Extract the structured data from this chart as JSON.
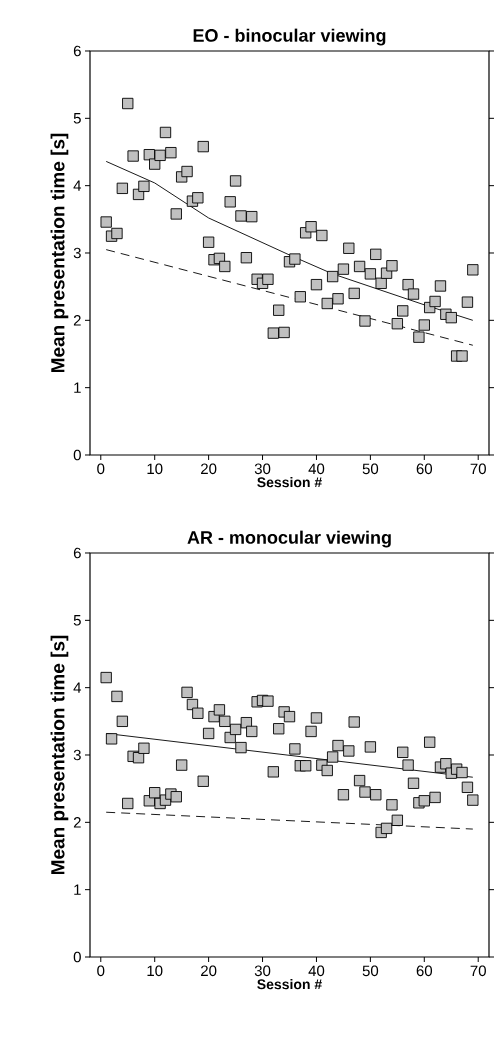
{
  "chart_data": [
    {
      "type": "scatter",
      "title": "EO - binocular viewing",
      "xlabel": "Session #",
      "ylabel": "Mean presentation time [s]",
      "xlim": [
        -2,
        72
      ],
      "ylim": [
        0,
        6
      ],
      "xticks": [
        0,
        10,
        20,
        30,
        40,
        50,
        60,
        70
      ],
      "yticks": [
        0,
        1,
        2,
        3,
        4,
        5,
        6
      ],
      "series": [
        {
          "color": "#c0c0c0",
          "marker": "square",
          "x": [
            1,
            2,
            3,
            4,
            5,
            6,
            7,
            8,
            9,
            10,
            11,
            12,
            13,
            14,
            15,
            16,
            17,
            18,
            19,
            20,
            21,
            22,
            23,
            24,
            25,
            26,
            27,
            28,
            29,
            30,
            31,
            32,
            33,
            34,
            35,
            36,
            37,
            38,
            39,
            40,
            41,
            42,
            43,
            44,
            45,
            46,
            47,
            48,
            49,
            50,
            51,
            52,
            53,
            54,
            55,
            56,
            57,
            58,
            59,
            60,
            61,
            62,
            63,
            64,
            65,
            66,
            67,
            68,
            69
          ],
          "values": [
            3.46,
            3.25,
            3.29,
            3.96,
            5.22,
            4.44,
            3.87,
            3.99,
            4.46,
            4.32,
            4.45,
            4.79,
            4.49,
            3.58,
            4.13,
            4.21,
            3.77,
            3.82,
            4.58,
            3.16,
            2.9,
            2.92,
            2.8,
            3.76,
            4.07,
            3.55,
            2.93,
            3.54,
            2.61,
            2.55,
            2.61,
            1.81,
            2.15,
            1.82,
            2.87,
            2.91,
            2.35,
            3.3,
            3.39,
            2.53,
            3.26,
            2.25,
            2.65,
            2.32,
            2.76,
            3.07,
            2.4,
            2.8,
            1.99,
            2.69,
            2.98,
            2.55,
            2.7,
            2.81,
            1.95,
            2.14,
            2.53,
            2.39,
            1.75,
            1.93,
            2.19,
            2.28,
            2.51,
            2.09,
            2.04,
            1.47,
            1.47,
            2.27,
            2.75
          ]
        },
        {
          "type": "line",
          "color": "#000000",
          "line_style": "solid",
          "x": [
            1,
            10,
            20,
            35,
            43,
            60,
            69
          ],
          "values": [
            4.36,
            4.04,
            3.52,
            2.97,
            2.69,
            2.23,
            2.0
          ]
        },
        {
          "type": "line",
          "color": "#000000",
          "line_style": "dashed",
          "x": [
            1,
            69
          ],
          "values": [
            3.05,
            1.63
          ]
        }
      ]
    },
    {
      "type": "scatter",
      "title": "AR - monocular viewing",
      "xlabel": "Session #",
      "ylabel": "Mean presentation time [s]",
      "xlim": [
        -2,
        72
      ],
      "ylim": [
        0,
        6
      ],
      "xticks": [
        0,
        10,
        20,
        30,
        40,
        50,
        60,
        70
      ],
      "yticks": [
        0,
        1,
        2,
        3,
        4,
        5,
        6
      ],
      "series": [
        {
          "color": "#c0c0c0",
          "marker": "square",
          "x": [
            1,
            2,
            3,
            4,
            5,
            6,
            7,
            8,
            9,
            10,
            11,
            12,
            13,
            14,
            15,
            16,
            17,
            18,
            19,
            20,
            21,
            22,
            23,
            24,
            25,
            26,
            27,
            28,
            29,
            30,
            31,
            32,
            33,
            34,
            35,
            36,
            37,
            38,
            39,
            40,
            41,
            42,
            43,
            44,
            45,
            46,
            47,
            48,
            49,
            50,
            51,
            52,
            53,
            54,
            55,
            56,
            57,
            58,
            59,
            60,
            61,
            62,
            63,
            64,
            65,
            66,
            67,
            68,
            69
          ],
          "values": [
            4.15,
            3.24,
            3.87,
            3.5,
            2.28,
            2.98,
            2.96,
            3.1,
            2.32,
            2.44,
            2.28,
            2.33,
            2.42,
            2.38,
            2.85,
            3.93,
            3.75,
            3.62,
            2.61,
            3.32,
            3.57,
            3.67,
            3.5,
            3.26,
            3.38,
            3.11,
            3.48,
            3.35,
            3.79,
            3.81,
            3.8,
            2.75,
            3.39,
            3.64,
            3.57,
            3.09,
            2.84,
            2.84,
            3.35,
            3.55,
            2.85,
            2.77,
            2.97,
            3.14,
            2.41,
            3.06,
            3.49,
            2.62,
            2.45,
            3.12,
            2.41,
            1.85,
            1.91,
            2.26,
            2.03,
            3.04,
            2.85,
            2.58,
            2.29,
            2.32,
            3.19,
            2.37,
            2.82,
            2.87,
            2.73,
            2.79,
            2.74,
            2.52,
            2.33
          ]
        },
        {
          "type": "line",
          "color": "#000000",
          "line_style": "solid",
          "x": [
            1,
            69
          ],
          "values": [
            3.32,
            2.67
          ]
        },
        {
          "type": "line",
          "color": "#000000",
          "line_style": "dashed",
          "x": [
            1,
            69
          ],
          "values": [
            2.15,
            1.9
          ]
        }
      ]
    }
  ]
}
